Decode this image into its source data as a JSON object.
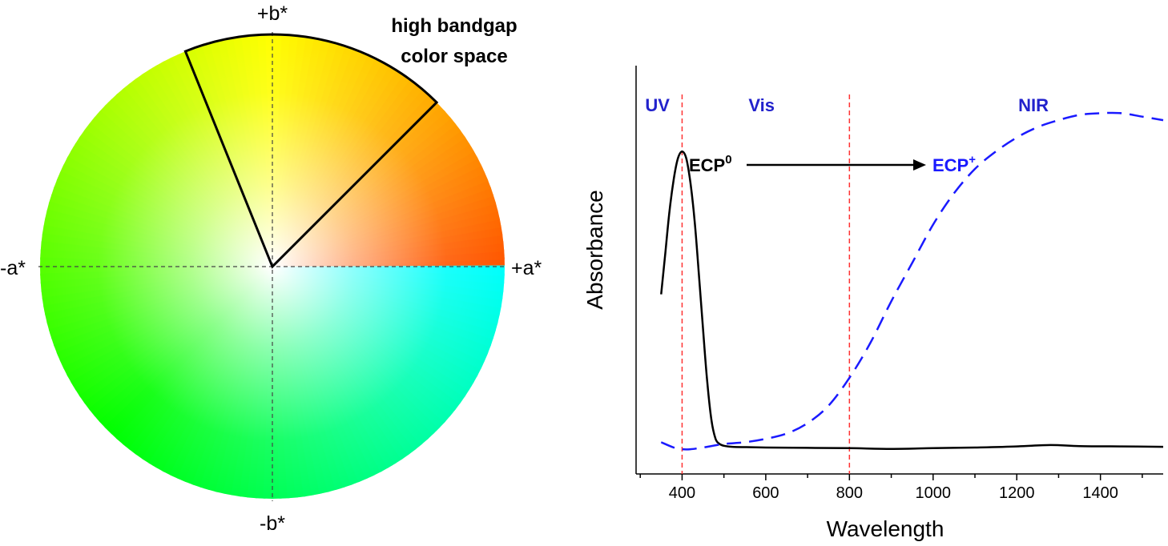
{
  "color_wheel": {
    "axis_labels": {
      "plus_b": "+b*",
      "minus_b": "-b*",
      "minus_a": "-a*",
      "plus_a": "+a*"
    },
    "annotation_line1": "high bandgap",
    "annotation_line2": "color space"
  },
  "chart_data": {
    "type": "line",
    "title": "",
    "xlabel": "Wavelength",
    "ylabel": "Absorbance",
    "xlim": [
      290,
      1550
    ],
    "ylim": [
      0,
      1
    ],
    "xticks": [
      400,
      600,
      800,
      1000,
      1200,
      1400
    ],
    "xtick_labels": [
      "400",
      "600",
      "800",
      "1000",
      "1200",
      "1400"
    ],
    "y_tick_labels_shown": false,
    "grid": false,
    "region_labels": [
      "UV",
      "Vis",
      "NIR"
    ],
    "region_boundaries": [
      400,
      800
    ],
    "series": [
      {
        "name": "ECP⁰",
        "line": "solid",
        "color": "#000000",
        "x": [
          350,
          360,
          370,
          380,
          390,
          400,
          410,
          420,
          430,
          440,
          450,
          460,
          470,
          480,
          490,
          500,
          520,
          550,
          600,
          700,
          800,
          900,
          1000,
          1100,
          1200,
          1280,
          1350,
          1450,
          1550
        ],
        "y": [
          0.47,
          0.59,
          0.71,
          0.8,
          0.86,
          0.88,
          0.86,
          0.79,
          0.68,
          0.53,
          0.37,
          0.22,
          0.11,
          0.055,
          0.04,
          0.035,
          0.032,
          0.031,
          0.03,
          0.029,
          0.028,
          0.026,
          0.028,
          0.03,
          0.033,
          0.037,
          0.034,
          0.033,
          0.032
        ]
      },
      {
        "name": "ECP⁺",
        "line": "dashed",
        "color": "#1a1aff",
        "x": [
          350,
          380,
          400,
          420,
          450,
          500,
          550,
          600,
          650,
          700,
          750,
          800,
          850,
          900,
          950,
          1000,
          1050,
          1100,
          1150,
          1200,
          1250,
          1300,
          1350,
          1400,
          1450,
          1500,
          1550
        ],
        "y": [
          0.045,
          0.03,
          0.025,
          0.025,
          0.03,
          0.04,
          0.045,
          0.055,
          0.07,
          0.1,
          0.15,
          0.23,
          0.33,
          0.45,
          0.56,
          0.67,
          0.76,
          0.83,
          0.88,
          0.92,
          0.95,
          0.97,
          0.985,
          0.99,
          0.99,
          0.98,
          0.97
        ]
      }
    ],
    "annotations": {
      "start_label": "ECP",
      "start_sup": "0",
      "end_label": "ECP",
      "end_sup": "+"
    }
  },
  "colors": {
    "boundary_line": "#ff3333",
    "region_text": "#2222cc",
    "ecp_plus": "#1a1aff"
  }
}
